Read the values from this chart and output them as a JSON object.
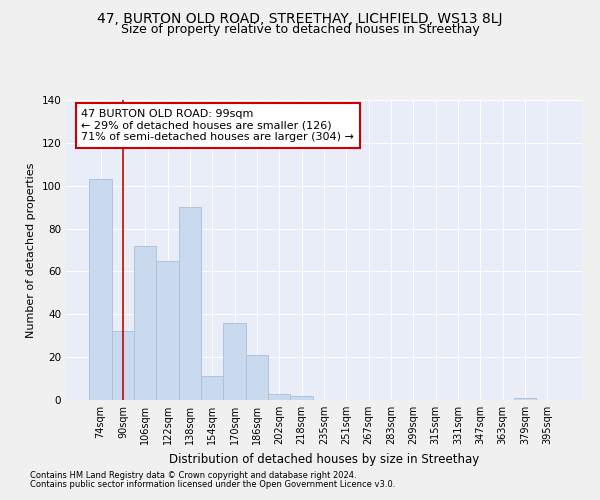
{
  "title": "47, BURTON OLD ROAD, STREETHAY, LICHFIELD, WS13 8LJ",
  "subtitle": "Size of property relative to detached houses in Streethay",
  "xlabel": "Distribution of detached houses by size in Streethay",
  "ylabel": "Number of detached properties",
  "categories": [
    "74sqm",
    "90sqm",
    "106sqm",
    "122sqm",
    "138sqm",
    "154sqm",
    "170sqm",
    "186sqm",
    "202sqm",
    "218sqm",
    "235sqm",
    "251sqm",
    "267sqm",
    "283sqm",
    "299sqm",
    "315sqm",
    "331sqm",
    "347sqm",
    "363sqm",
    "379sqm",
    "395sqm"
  ],
  "values": [
    103,
    32,
    72,
    65,
    90,
    11,
    36,
    21,
    3,
    2,
    0,
    0,
    0,
    0,
    0,
    0,
    0,
    0,
    0,
    1,
    0
  ],
  "bar_color": "#c9d9ee",
  "bar_edge_color": "#aabfd8",
  "vline_x": 1.0,
  "vline_color": "#cc0000",
  "annotation_text": "47 BURTON OLD ROAD: 99sqm\n← 29% of detached houses are smaller (126)\n71% of semi-detached houses are larger (304) →",
  "annotation_box_color": "#ffffff",
  "annotation_box_edge_color": "#cc0000",
  "ylim": [
    0,
    140
  ],
  "yticks": [
    0,
    20,
    40,
    60,
    80,
    100,
    120,
    140
  ],
  "bg_color": "#e8edf7",
  "grid_color": "#ffffff",
  "footer_line1": "Contains HM Land Registry data © Crown copyright and database right 2024.",
  "footer_line2": "Contains public sector information licensed under the Open Government Licence v3.0.",
  "fig_bg_color": "#f0f0f0",
  "title_fontsize": 10,
  "subtitle_fontsize": 9,
  "xlabel_fontsize": 8.5,
  "ylabel_fontsize": 8
}
